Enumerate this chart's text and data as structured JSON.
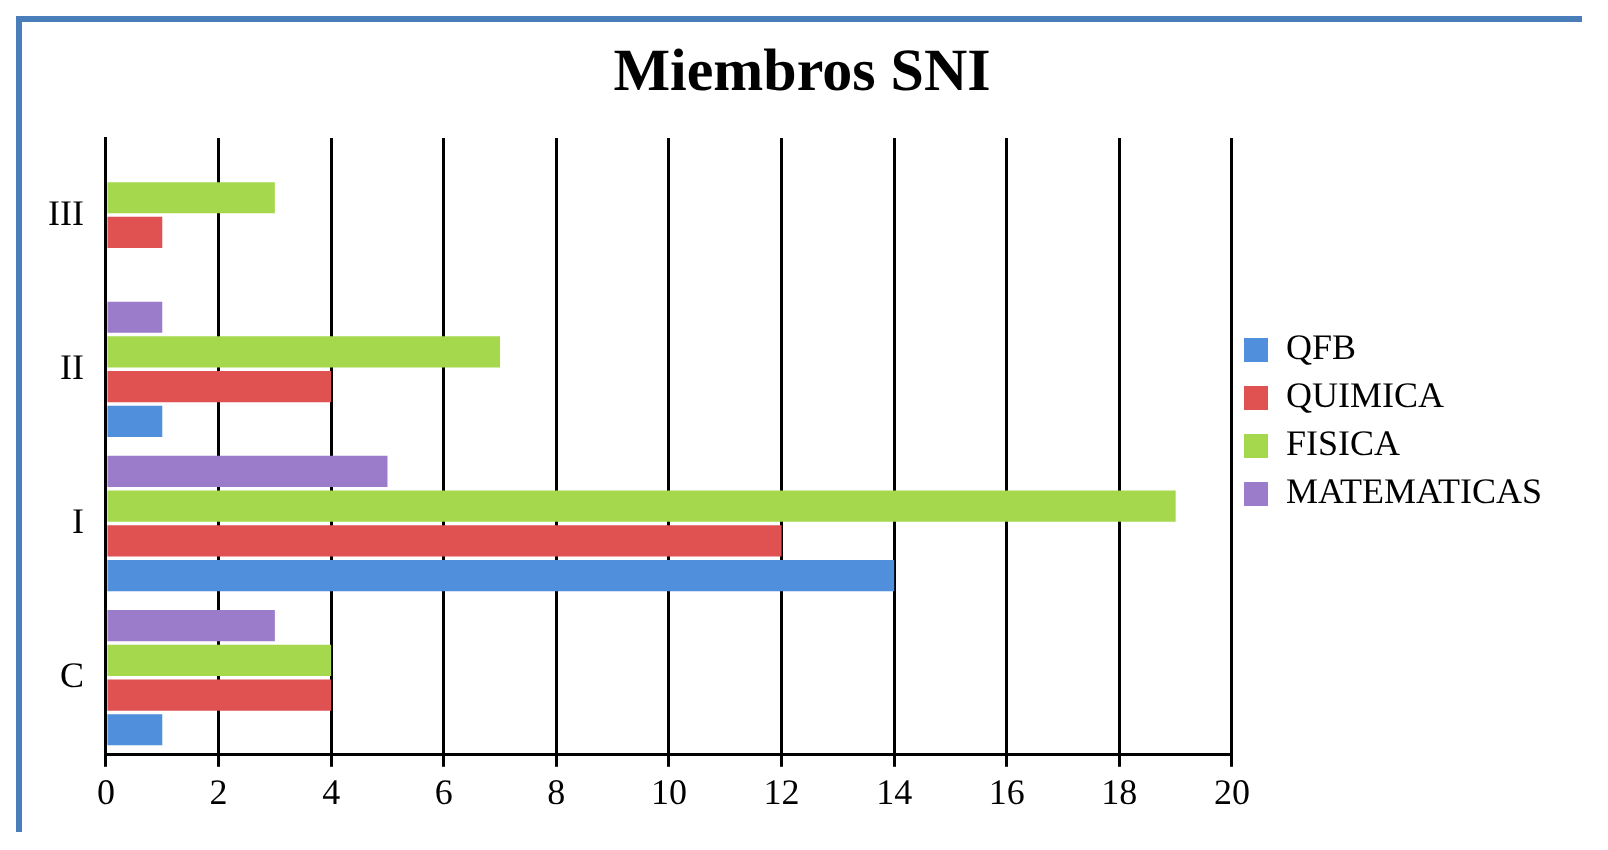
{
  "chart_data": {
    "type": "bar",
    "orientation": "horizontal",
    "title": "Miembros SNI",
    "categories": [
      "III",
      "II",
      "I",
      "C"
    ],
    "series": [
      {
        "name": "QFB",
        "color": "#4f8fdc",
        "values": [
          0,
          1,
          14,
          1
        ]
      },
      {
        "name": "QUIMICA",
        "color": "#e05252",
        "values": [
          1,
          4,
          12,
          4
        ]
      },
      {
        "name": "FISICA",
        "color": "#a6d84e",
        "values": [
          3,
          7,
          19,
          4
        ]
      },
      {
        "name": "MATEMATICAS",
        "color": "#9b7ccb",
        "values": [
          0,
          1,
          5,
          3
        ]
      }
    ],
    "xlim": [
      0,
      20
    ],
    "xticks": [
      0,
      2,
      4,
      6,
      8,
      10,
      12,
      14,
      16,
      18,
      20
    ],
    "grid": "x",
    "legend": "right"
  }
}
